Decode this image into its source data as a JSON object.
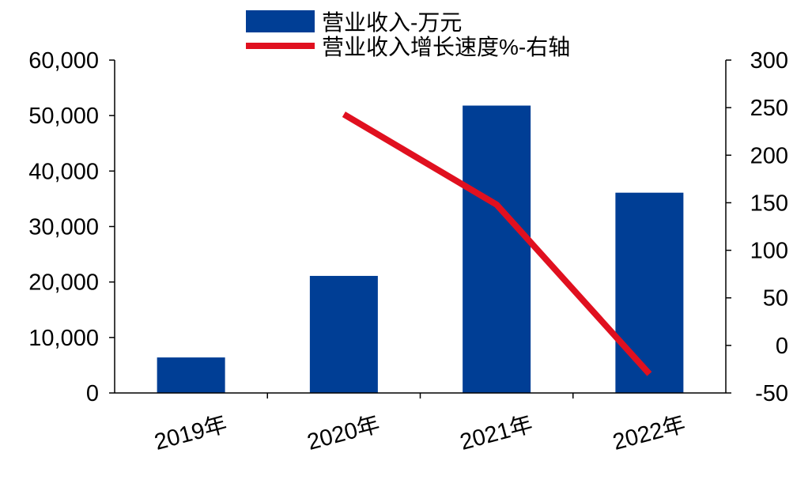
{
  "chart_data": {
    "type": "bar",
    "title": "",
    "categories": [
      "2019年",
      "2020年",
      "2021年",
      "2022年"
    ],
    "series": [
      {
        "name": "营业收入-万元",
        "type": "bar",
        "axis": "left",
        "color": "#003E95",
        "values": [
          6400,
          21100,
          51800,
          36100
        ]
      },
      {
        "name": "营业收入增长速度%-右轴",
        "type": "line",
        "axis": "right",
        "color": "#E0101F",
        "values": [
          null,
          243,
          148,
          -30
        ]
      }
    ],
    "ylim_left": [
      0,
      60000
    ],
    "ylim_right": [
      -50,
      300
    ],
    "left_ticks": [
      "0",
      "10,000",
      "20,000",
      "30,000",
      "40,000",
      "50,000",
      "60,000"
    ],
    "right_ticks": [
      "-50",
      "0",
      "50",
      "100",
      "150",
      "200",
      "250",
      "300"
    ],
    "legend_position": "top-center",
    "grid": false
  }
}
